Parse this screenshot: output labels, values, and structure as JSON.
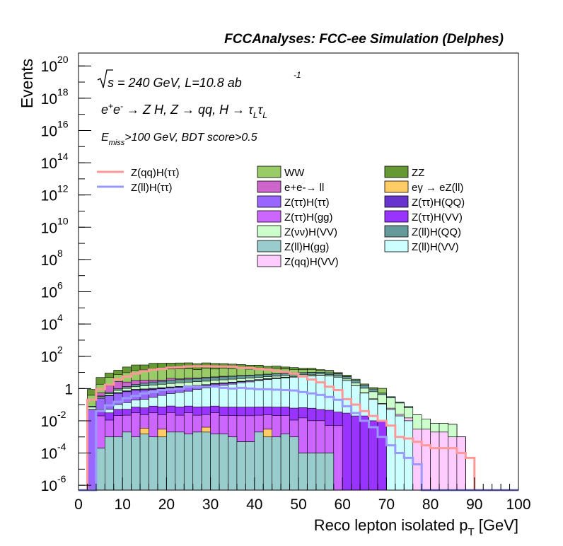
{
  "chart_data": {
    "type": "histogram",
    "title": "FCCAnalyses: FCC-ee Simulation (Delphes)",
    "xlabel": "Reco lepton isolated p",
    "xlabel_sub": "T",
    "xlabel_unit": " [GeV]",
    "ylabel": "Events",
    "xlim": [
      0,
      100
    ],
    "ylim_log10": [
      -6.3,
      20.8
    ],
    "y_scale": "log",
    "bins": {
      "start": 0,
      "width": 2,
      "count": 50
    },
    "x_ticks": [
      "0",
      "10",
      "20",
      "30",
      "40",
      "50",
      "60",
      "70",
      "80",
      "90",
      "100"
    ],
    "y_ticks": [
      {
        "base": "10",
        "exp": "20"
      },
      {
        "base": "10",
        "exp": "18"
      },
      {
        "base": "10",
        "exp": "16"
      },
      {
        "base": "10",
        "exp": "14"
      },
      {
        "base": "10",
        "exp": "12"
      },
      {
        "base": "10",
        "exp": "10"
      },
      {
        "base": "10",
        "exp": "8"
      },
      {
        "base": "10",
        "exp": "6"
      },
      {
        "base": "10",
        "exp": "4"
      },
      {
        "base": "10",
        "exp": "2"
      },
      {
        "base": "1",
        "exp": ""
      },
      {
        "base": "10",
        "exp": "-2"
      },
      {
        "base": "10",
        "exp": "-4"
      },
      {
        "base": "10",
        "exp": "-6"
      }
    ],
    "annotations": {
      "energy": "s = 240 GeV, L=10.8 ab",
      "energy_exp": "-1",
      "process": "e+e- → Z H, Z → qq, H → ττ (L L)",
      "selection": "E",
      "selection_sub": "miss",
      "selection_rest": ">100 GeV, BDT score>0.5"
    },
    "legend_placement": "upper middle, two columns plus signal lines on left",
    "stack_order_bottom_to_top": [
      "Z(ll)H(gg)",
      "eγ → eZ(ll)",
      "Z(ττ)H(gg)",
      "Z(ττ)H(VV)",
      "Z(ll)H(VV)",
      "Z(ττ)H(ττ)",
      "Z(qq)H(VV)",
      "Z(ττ)H(QQ)",
      "Z(νν)H(VV)",
      "Z(ll)H(QQ)",
      "e+e-→ ll",
      "WW",
      "ZZ"
    ],
    "series": [
      {
        "name": "WW",
        "color": "#99cc66",
        "stroke": "#000000",
        "type": "stack",
        "values": [
          0,
          0.3,
          1.3,
          3.4,
          4.8,
          7.1,
          9.8,
          10.9,
          12.1,
          12.8,
          11.9,
          12.5,
          12.0,
          10.2,
          13.1,
          10.9,
          12.4,
          11.5,
          11.3,
          9.1,
          9.6,
          7.3,
          9.5,
          7.5,
          5.9,
          4.9,
          5.3,
          2.8,
          2.7,
          1.1,
          1.0,
          0.4,
          0.25,
          0.2,
          0.5,
          0,
          0,
          0,
          0,
          0,
          0,
          0,
          0,
          0,
          0,
          0,
          0,
          0,
          0,
          0
        ]
      },
      {
        "name": "ZZ",
        "color": "#669933",
        "stroke": "#000000",
        "type": "stack",
        "values": [
          0,
          0.5,
          3.0,
          4.2,
          6.1,
          12.0,
          16.0,
          14.8,
          21.2,
          21.0,
          21.5,
          22.1,
          22.7,
          20.0,
          21.0,
          19.6,
          17.0,
          15.2,
          13.1,
          12.0,
          11.4,
          8.5,
          7.0,
          5.5,
          4.8,
          3.5,
          2.7,
          1.8,
          1.1,
          0.55,
          0.22,
          0.01,
          0.002,
          0.001,
          0.001,
          0,
          0,
          0,
          0,
          0,
          0,
          0,
          0,
          0,
          0,
          0,
          0,
          0,
          0,
          0
        ]
      },
      {
        "name": "e+e-→ ll",
        "color": "#cc66cc",
        "stroke": "#000000",
        "type": "stack",
        "values": [
          0,
          0,
          0.2,
          0.9,
          1.8,
          1.2,
          1.3,
          1.1,
          0.8,
          0.5,
          1.0,
          0.4,
          0.6,
          0.4,
          0.4,
          0.3,
          0.5,
          0.2,
          0.3,
          0.3,
          0.1,
          0.2,
          0.1,
          0.05,
          0.2,
          0.1,
          0.05,
          0.05,
          0.02,
          0.01,
          0.01,
          0,
          0,
          0,
          0,
          0,
          0,
          0,
          0,
          0,
          0,
          0,
          0,
          0,
          0,
          0,
          0,
          0,
          0,
          0
        ]
      },
      {
        "name": "eγ → eZ(ll)",
        "color": "#ffcc66",
        "stroke": "#000000",
        "type": "stack",
        "values": [
          0,
          0,
          0,
          0,
          0,
          0,
          0,
          0.002,
          0,
          0.002,
          0,
          0,
          0,
          0,
          0.002,
          0,
          0,
          0,
          0,
          0,
          0,
          0.002,
          0,
          0,
          0,
          0,
          0,
          0,
          0,
          0,
          0,
          0,
          0,
          0,
          0,
          0,
          0,
          0,
          0,
          0,
          0,
          0,
          0,
          0,
          0,
          0,
          0,
          0,
          0,
          0
        ]
      },
      {
        "name": "Z(ττ)H(ττ)",
        "color": "#9966ff",
        "stroke": "#000000",
        "type": "stack",
        "values": [
          0,
          0.05,
          0.2,
          0.3,
          0.4,
          0.5,
          0.6,
          0.6,
          0.6,
          0.6,
          0.6,
          0.6,
          0.6,
          0.5,
          0.5,
          0.5,
          0.5,
          0.45,
          0.4,
          0.4,
          0.35,
          0.35,
          0.3,
          0.3,
          0.25,
          0.2,
          0.2,
          0.15,
          0.1,
          0.05,
          0.02,
          0.01,
          0,
          0,
          0,
          0,
          0,
          0,
          0,
          0,
          0,
          0,
          0,
          0,
          0,
          0,
          0,
          0,
          0,
          0
        ]
      },
      {
        "name": "Z(ττ)H(QQ)",
        "color": "#6633cc",
        "stroke": "#000000",
        "type": "stack",
        "values": [
          0,
          0,
          0.01,
          0.02,
          0.05,
          0.07,
          0.08,
          0.1,
          0.12,
          0.12,
          0.13,
          0.13,
          0.13,
          0.13,
          0.12,
          0.12,
          0.12,
          0.11,
          0.1,
          0.1,
          0.09,
          0.09,
          0.08,
          0.07,
          0.06,
          0.05,
          0.04,
          0.03,
          0.02,
          0.01,
          0.005,
          0,
          0,
          0,
          0,
          0,
          0,
          0,
          0,
          0,
          0,
          0,
          0,
          0,
          0,
          0,
          0,
          0,
          0,
          0
        ]
      },
      {
        "name": "Z(ττ)H(gg)",
        "color": "#cc66ff",
        "stroke": "#000000",
        "type": "stack",
        "values": [
          0,
          0,
          0.02,
          0.01,
          0.02,
          0.02,
          0.03,
          0.02,
          0.03,
          0.02,
          0.03,
          0.02,
          0.03,
          0.02,
          0.02,
          0.03,
          0.02,
          0.02,
          0.02,
          0.02,
          0.02,
          0.02,
          0.02,
          0.02,
          0.01,
          0.015,
          0.01,
          0.01,
          0.005,
          0.005,
          0,
          0,
          0,
          0,
          0,
          0,
          0,
          0,
          0,
          0,
          0,
          0,
          0,
          0,
          0,
          0,
          0,
          0,
          0,
          0
        ]
      },
      {
        "name": "Z(ττ)H(VV)",
        "color": "#9933ff",
        "stroke": "#000000",
        "type": "stack",
        "values": [
          0,
          0,
          0.02,
          0.02,
          0.03,
          0.03,
          0.04,
          0.04,
          0.05,
          0.05,
          0.05,
          0.05,
          0.05,
          0.05,
          0.05,
          0.05,
          0.05,
          0.05,
          0.05,
          0.05,
          0.05,
          0.05,
          0.05,
          0.05,
          0.05,
          0.05,
          0.05,
          0.04,
          0.04,
          0.03,
          0.03,
          0.02,
          0.02,
          0.01,
          0.01,
          0,
          0,
          0,
          0,
          0,
          0,
          0,
          0,
          0,
          0,
          0,
          0,
          0,
          0,
          0
        ]
      },
      {
        "name": "Z(νν)H(VV)",
        "color": "#ccffcc",
        "stroke": "#000000",
        "type": "stack",
        "values": [
          0,
          0.02,
          0.05,
          0.1,
          0.2,
          0.3,
          0.4,
          0.5,
          0.6,
          0.7,
          0.8,
          0.9,
          1.0,
          1.1,
          1.1,
          1.2,
          1.2,
          1.3,
          1.3,
          1.3,
          1.3,
          1.3,
          1.3,
          1.3,
          1.3,
          1.3,
          1.2,
          1.1,
          1.0,
          0.9,
          0.8,
          0.6,
          0.5,
          0.4,
          0.3,
          0.2,
          0.1,
          0.05,
          0.02,
          0.01,
          0.005,
          0.005,
          0.005,
          0,
          0,
          0,
          0,
          0,
          0,
          0
        ]
      },
      {
        "name": "Z(ll)H(QQ)",
        "color": "#669999",
        "stroke": "#000000",
        "type": "stack",
        "values": [
          0,
          0.01,
          0.03,
          0.1,
          0.2,
          0.3,
          0.5,
          0.7,
          0.9,
          1.0,
          1.2,
          1.3,
          1.4,
          1.5,
          1.6,
          1.7,
          1.8,
          1.9,
          2.0,
          2.0,
          2.1,
          2.2,
          2.3,
          2.3,
          2.4,
          2.4,
          2.4,
          2.3,
          2.2,
          2.0,
          1.6,
          1.2,
          0.6,
          0.3,
          0.1,
          0.05,
          0.02,
          0.01,
          0,
          0,
          0,
          0,
          0,
          0,
          0,
          0,
          0,
          0,
          0,
          0
        ]
      },
      {
        "name": "Z(ll)H(gg)",
        "color": "#99cccc",
        "stroke": "#000000",
        "type": "stack",
        "values": [
          0,
          0,
          0.0002,
          0.001,
          0.001,
          0.002,
          0.001,
          0.0015,
          0.001,
          0.001,
          0.002,
          0.002,
          0.0015,
          0.002,
          0.002,
          0.0015,
          0.0015,
          0.001,
          0.0005,
          0.0005,
          0.002,
          0.001,
          0.001,
          0.0015,
          0.001,
          0.0001,
          0.0001,
          0.0001,
          0.0001,
          0,
          0,
          0,
          0,
          0,
          0,
          0,
          0,
          0,
          0,
          0,
          0,
          0,
          0,
          0,
          0,
          0,
          0,
          0,
          0,
          0
        ]
      },
      {
        "name": "Z(ll)H(VV)",
        "color": "#ccffff",
        "stroke": "#000000",
        "type": "stack",
        "values": [
          0,
          0,
          0.01,
          0.02,
          0.05,
          0.08,
          0.12,
          0.15,
          0.2,
          0.3,
          0.4,
          0.5,
          0.6,
          0.8,
          1.0,
          1.3,
          1.5,
          1.8,
          2.2,
          2.5,
          3.0,
          3.5,
          4.0,
          4.5,
          5.0,
          5.5,
          6.0,
          6.5,
          6.0,
          5.0,
          3.0,
          1.5,
          0.5,
          0.2,
          0.1,
          0.05,
          0.02,
          0.01,
          0,
          0,
          0,
          0,
          0,
          0,
          0,
          0,
          0,
          0,
          0,
          0
        ]
      },
      {
        "name": "Z(qq)H(VV)",
        "color": "#ffccff",
        "stroke": "#000000",
        "type": "stack",
        "values": [
          0,
          0,
          0.005,
          0.01,
          0.01,
          0.02,
          0.02,
          0.03,
          0.03,
          0.04,
          0.04,
          0.05,
          0.05,
          0.05,
          0.05,
          0.06,
          0.06,
          0.06,
          0.06,
          0.06,
          0.06,
          0.06,
          0.06,
          0.06,
          0.05,
          0.05,
          0.05,
          0.05,
          0.04,
          0.04,
          0.03,
          0.03,
          0.02,
          0.02,
          0.01,
          0.01,
          0.005,
          0.005,
          0.003,
          0.003,
          0.002,
          0.002,
          0.001,
          0.001,
          0,
          0,
          0,
          0,
          0,
          0
        ]
      },
      {
        "name": "Z(qq)H(ττ)",
        "color": "#ff9999",
        "type": "line",
        "values": [
          0,
          0.2,
          0.9,
          1.7,
          3.7,
          5.5,
          8.6,
          12.0,
          14.7,
          16.7,
          19.6,
          20.7,
          23.5,
          24.0,
          24.1,
          23.4,
          23.2,
          22.6,
          19.4,
          18.5,
          16.4,
          14.8,
          12.5,
          10.6,
          8.4,
          5.6,
          3.6,
          2.4,
          1.3,
          0.8,
          0.22,
          0.1,
          0.04,
          0.02,
          0.01,
          0.005,
          0.001,
          0.0008,
          0.0005,
          0.0003,
          0.0002,
          0.0002,
          0.0002,
          0.0001,
          5e-05,
          0,
          0,
          0,
          0,
          0
        ]
      },
      {
        "name": "Z(ll)H(ττ)",
        "color": "#9999ff",
        "type": "line",
        "values": [
          0,
          0,
          0.04,
          0.09,
          0.15,
          0.25,
          0.35,
          0.5,
          0.6,
          0.8,
          0.9,
          1.0,
          1.3,
          1.3,
          1.3,
          1.3,
          1.1,
          1.0,
          1.1,
          1.0,
          0.9,
          0.9,
          0.85,
          0.8,
          0.75,
          0.6,
          0.5,
          0.4,
          0.3,
          0.2,
          0.08,
          0.03,
          0.01,
          0.004,
          0.001,
          0.0003,
          0.0001,
          5e-05,
          2e-05,
          0,
          0,
          0,
          0,
          0,
          0,
          0,
          0,
          0,
          0,
          0
        ]
      }
    ],
    "legend": [
      {
        "label": "WW",
        "color": "#99cc66",
        "kind": "box",
        "col": 1,
        "row": 0
      },
      {
        "label": "ZZ",
        "color": "#669933",
        "kind": "box",
        "col": 2,
        "row": 0
      },
      {
        "label": "e+e-→ ll",
        "color": "#cc66cc",
        "kind": "box",
        "col": 1,
        "row": 1
      },
      {
        "label": "eγ → eZ(ll)",
        "color": "#ffcc66",
        "kind": "box",
        "col": 2,
        "row": 1
      },
      {
        "label": "Z(ττ)H(ττ)",
        "color": "#9966ff",
        "kind": "box",
        "col": 1,
        "row": 2
      },
      {
        "label": "Z(ττ)H(QQ)",
        "color": "#6633cc",
        "kind": "box",
        "col": 2,
        "row": 2
      },
      {
        "label": "Z(ττ)H(gg)",
        "color": "#cc66ff",
        "kind": "box",
        "col": 1,
        "row": 3
      },
      {
        "label": "Z(ττ)H(VV)",
        "color": "#9933ff",
        "kind": "box",
        "col": 2,
        "row": 3
      },
      {
        "label": "Z(νν)H(VV)",
        "color": "#ccffcc",
        "kind": "box",
        "col": 1,
        "row": 4
      },
      {
        "label": "Z(ll)H(QQ)",
        "color": "#669999",
        "kind": "box",
        "col": 2,
        "row": 4
      },
      {
        "label": "Z(ll)H(gg)",
        "color": "#99cccc",
        "kind": "box",
        "col": 1,
        "row": 5
      },
      {
        "label": "Z(ll)H(VV)",
        "color": "#ccffff",
        "kind": "box",
        "col": 2,
        "row": 5
      },
      {
        "label": "Z(qq)H(VV)",
        "color": "#ffccff",
        "kind": "box",
        "col": 1,
        "row": 6
      },
      {
        "label": "Z(qq)H(ττ)",
        "color": "#ff9999",
        "kind": "line",
        "col": 0,
        "row": 0
      },
      {
        "label": "Z(ll)H(ττ)",
        "color": "#9999ff",
        "kind": "line",
        "col": 0,
        "row": 1
      }
    ]
  }
}
